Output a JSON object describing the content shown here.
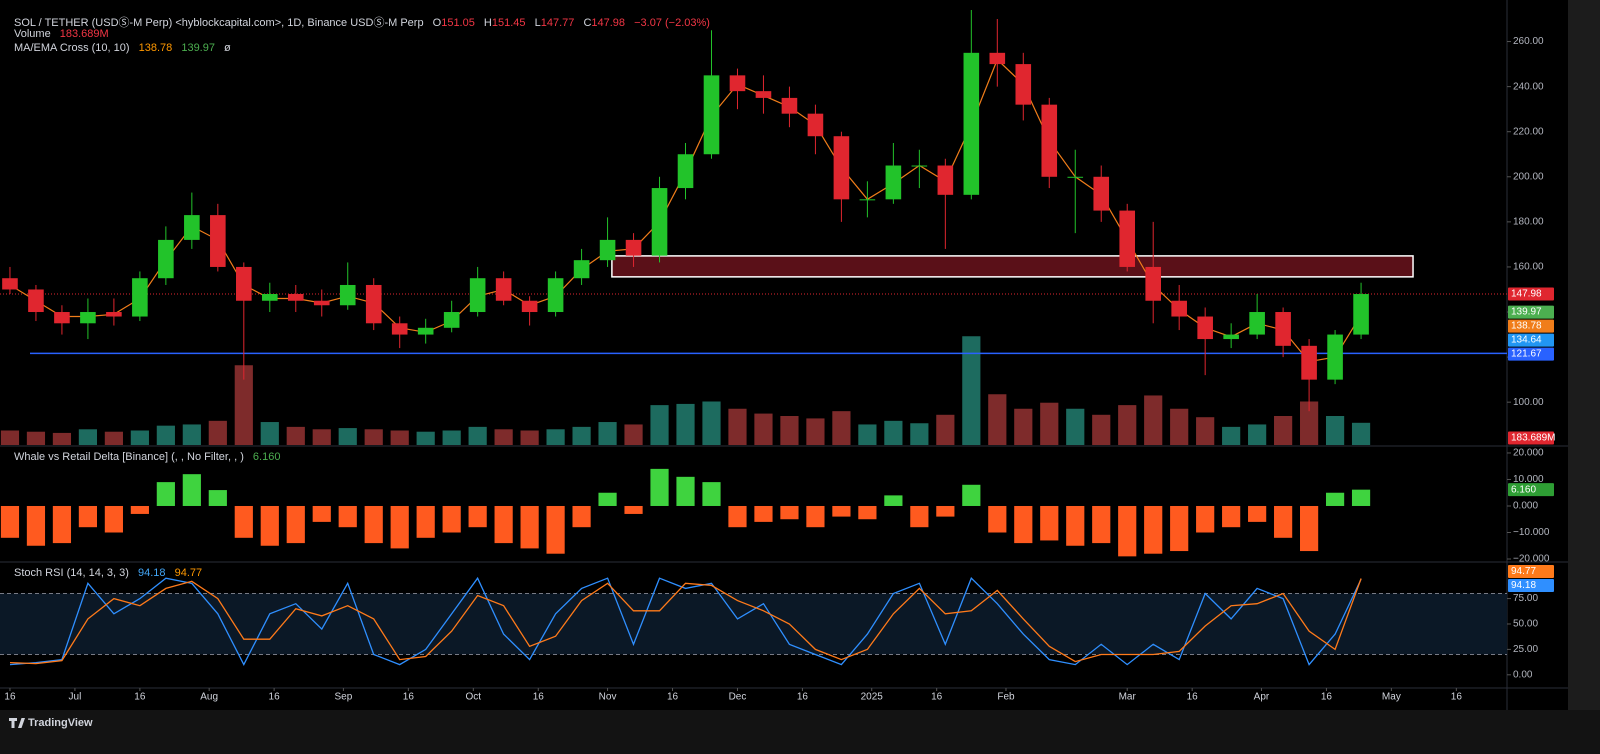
{
  "header": {
    "title": "SOL / TETHER (USDⓈ-M Perp) <hyblockcapital.com>, 1D, Binance USDⓈ-M Perp",
    "ohlc": [
      [
        "O",
        "151.05"
      ],
      [
        "H",
        "151.45"
      ],
      [
        "L",
        "147.77"
      ],
      [
        "C",
        "147.98"
      ]
    ],
    "change": "−3.07 (−2.03%)",
    "volume_label": "Volume",
    "ma_label": "MA/EMA Cross (10, 10)",
    "ma_suffix": "ø"
  },
  "footer": {
    "brand": "TradingView"
  },
  "chart_data": [
    {
      "type": "candlestick",
      "x": [
        0,
        6,
        12,
        18,
        24,
        30,
        36,
        42,
        48,
        54,
        60,
        66,
        72,
        78,
        84,
        90,
        96,
        102,
        108,
        114,
        120,
        126,
        132,
        138,
        144,
        150,
        156,
        162,
        168,
        174,
        180,
        186,
        192,
        198,
        204,
        210,
        216,
        222,
        228,
        234,
        240,
        246,
        252,
        258,
        264,
        270,
        276,
        282,
        288,
        294,
        300,
        306,
        312
      ],
      "xlim": [
        -2.3,
        345.7
      ],
      "xticks": [
        {
          "value": 0,
          "label": "16"
        },
        {
          "value": 15,
          "label": "Jul"
        },
        {
          "value": 30,
          "label": "16"
        },
        {
          "value": 46,
          "label": "Aug"
        },
        {
          "value": 61,
          "label": "16"
        },
        {
          "value": 77,
          "label": "Sep"
        },
        {
          "value": 92,
          "label": "16"
        },
        {
          "value": 107,
          "label": "Oct"
        },
        {
          "value": 122,
          "label": "16"
        },
        {
          "value": 138,
          "label": "Nov"
        },
        {
          "value": 153,
          "label": "16"
        },
        {
          "value": 168,
          "label": "Dec"
        },
        {
          "value": 183,
          "label": "16"
        },
        {
          "value": 199,
          "label": "2025"
        },
        {
          "value": 214,
          "label": "16"
        },
        {
          "value": 230,
          "label": "Feb"
        },
        {
          "value": 258,
          "label": "Mar"
        },
        {
          "value": 273,
          "label": "16"
        },
        {
          "value": 289,
          "label": "Apr"
        },
        {
          "value": 304,
          "label": "16"
        },
        {
          "value": 319,
          "label": "May"
        },
        {
          "value": 334,
          "label": "16"
        }
      ],
      "open": [
        155,
        150,
        140,
        135,
        140,
        138,
        155,
        172,
        183,
        160,
        145,
        148,
        145,
        143,
        152,
        135,
        130,
        133,
        140,
        155,
        145,
        140,
        155,
        163,
        172,
        165,
        195,
        210,
        245,
        238,
        235,
        228,
        218,
        190,
        190,
        205,
        205,
        192,
        255,
        250,
        232,
        200,
        200,
        185,
        160,
        145,
        138,
        128,
        130,
        140,
        125,
        110,
        130
      ],
      "high": [
        160,
        152,
        143,
        146,
        146,
        158,
        178,
        193,
        188,
        162,
        153,
        152,
        150,
        162,
        155,
        138,
        137,
        145,
        160,
        158,
        147,
        158,
        168,
        182,
        175,
        200,
        215,
        265,
        248,
        245,
        240,
        232,
        220,
        198,
        215,
        212,
        208,
        274,
        270,
        255,
        235,
        212,
        205,
        188,
        180,
        152,
        142,
        135,
        148,
        142,
        128,
        132,
        153
      ],
      "low": [
        148,
        136,
        130,
        128,
        134,
        136,
        152,
        168,
        158,
        110,
        140,
        140,
        138,
        141,
        132,
        124,
        126,
        131,
        138,
        143,
        134,
        138,
        152,
        160,
        160,
        162,
        190,
        208,
        230,
        228,
        222,
        210,
        180,
        182,
        188,
        195,
        168,
        190,
        240,
        225,
        195,
        175,
        180,
        158,
        135,
        132,
        112,
        124,
        128,
        120,
        96,
        108,
        128
      ],
      "close": [
        150,
        140,
        135,
        140,
        138,
        155,
        172,
        183,
        160,
        145,
        148,
        145,
        143,
        152,
        135,
        130,
        133,
        140,
        155,
        145,
        140,
        155,
        163,
        172,
        165,
        195,
        210,
        245,
        238,
        235,
        228,
        218,
        190,
        190,
        205,
        205,
        192,
        255,
        250,
        232,
        200,
        200,
        185,
        160,
        145,
        138,
        128,
        130,
        140,
        125,
        110,
        130,
        147.98
      ],
      "up_color": "#22c32a",
      "down_color": "#e0262f",
      "ylim": [
        81,
        274
      ],
      "yticks": [
        {
          "value": 100,
          "label": "100.00"
        },
        {
          "value": 120,
          "label": "120.00"
        },
        {
          "value": 140,
          "label": "140.00"
        },
        {
          "value": 160,
          "label": "160.00"
        },
        {
          "value": 180,
          "label": "180.00"
        },
        {
          "value": 200,
          "label": "200.00"
        },
        {
          "value": 220,
          "label": "220.00"
        },
        {
          "value": 240,
          "label": "240.00"
        },
        {
          "value": 260,
          "label": "260.00"
        }
      ],
      "ma": {
        "color": "#f07d1a",
        "values": [
          152,
          145,
          138,
          138,
          139,
          146,
          163,
          178,
          172,
          152,
          146,
          146,
          144,
          147,
          144,
          133,
          131,
          136,
          147,
          150,
          143,
          147,
          159,
          167,
          168,
          180,
          202,
          227,
          241,
          236,
          231,
          223,
          204,
          190,
          197,
          205,
          198,
          223,
          252,
          241,
          216,
          200,
          192,
          172,
          152,
          141,
          133,
          129,
          135,
          132,
          118,
          120,
          138.78
        ]
      },
      "volume": {
        "values": [
          120,
          110,
          100,
          130,
          110,
          120,
          160,
          170,
          200,
          660,
          190,
          150,
          130,
          140,
          130,
          120,
          110,
          120,
          150,
          130,
          120,
          130,
          150,
          190,
          170,
          330,
          340,
          360,
          300,
          260,
          240,
          220,
          280,
          170,
          200,
          180,
          250,
          900,
          420,
          300,
          350,
          300,
          250,
          330,
          410,
          300,
          230,
          150,
          170,
          240,
          360,
          240,
          183.689
        ],
        "last_label": "183.689M",
        "ylim": [
          0,
          3600
        ],
        "up_color": "#1d6b5f",
        "down_color": "#7e2b2b"
      },
      "hline": {
        "value": 121.67,
        "color": "#2962ff"
      },
      "zone": {
        "ylim": [
          155.6,
          164.9
        ],
        "xlim": [
          139,
          324
        ],
        "color": "#5a1018"
      },
      "price_labels": [
        {
          "value": 139.97,
          "color": "#4caf50"
        },
        {
          "value": 134.64,
          "color": "#2196f3"
        }
      ]
    },
    {
      "type": "bar",
      "title": "Whale vs Retail Delta [Binance] (, , No Filter, , )",
      "values": [
        -12000,
        -15000,
        -14000,
        -8000,
        -10000,
        -3000,
        9000,
        12000,
        6000,
        -12000,
        -15000,
        -14000,
        -6000,
        -8000,
        -14000,
        -16000,
        -12000,
        -10000,
        -8000,
        -14000,
        -16000,
        -18000,
        -8000,
        5000,
        -3000,
        14000,
        11000,
        9000,
        -8000,
        -6000,
        -5000,
        -8000,
        -4000,
        -5000,
        4000,
        -8000,
        -4000,
        8000,
        -10000,
        -14000,
        -13000,
        -15000,
        -14000,
        -19000,
        -18000,
        -17000,
        -10000,
        -8000,
        -6000,
        -12000,
        -17000,
        5000,
        6160
      ],
      "last_label": "6.160",
      "pos_color": "#3fd33f",
      "neg_color": "#ff5a1f",
      "ylim": [
        -20750,
        22250
      ],
      "yticks": [
        {
          "value": 20000,
          "label": "20.000"
        },
        {
          "value": 10000,
          "label": "10.000"
        },
        {
          "value": 0,
          "label": "0.000"
        },
        {
          "value": -10000,
          "label": "−10.000"
        },
        {
          "value": -20000,
          "label": "−20.000"
        }
      ]
    },
    {
      "type": "line",
      "title": "Stoch RSI (14, 14, 3, 3)",
      "series": [
        {
          "color": "#2f8fff",
          "values": [
            10,
            12,
            15,
            90,
            60,
            75,
            95,
            90,
            60,
            10,
            60,
            70,
            45,
            90,
            20,
            10,
            25,
            60,
            95,
            40,
            15,
            60,
            85,
            95,
            30,
            95,
            85,
            90,
            55,
            70,
            30,
            20,
            10,
            40,
            80,
            90,
            30,
            95,
            70,
            40,
            15,
            10,
            30,
            10,
            30,
            15,
            80,
            55,
            85,
            75,
            10,
            40,
            94.18
          ]
        },
        {
          "color": "#ff7a1a",
          "values": [
            12,
            11,
            14,
            55,
            75,
            68,
            85,
            92,
            75,
            35,
            35,
            65,
            58,
            68,
            55,
            15,
            18,
            43,
            78,
            68,
            28,
            38,
            73,
            90,
            63,
            63,
            90,
            88,
            73,
            63,
            50,
            25,
            15,
            25,
            60,
            85,
            60,
            63,
            83,
            55,
            28,
            13,
            20,
            20,
            20,
            23,
            48,
            68,
            70,
            80,
            43,
            25,
            94.77
          ]
        }
      ],
      "band": [
        20,
        80
      ],
      "band_color": "#0b1826",
      "ylim": [
        -12,
        110
      ],
      "yticks": [
        {
          "value": 0,
          "label": "0.00"
        },
        {
          "value": 25,
          "label": "25.00"
        },
        {
          "value": 50,
          "label": "50.00"
        },
        {
          "value": 75,
          "label": "75.00"
        }
      ]
    }
  ]
}
